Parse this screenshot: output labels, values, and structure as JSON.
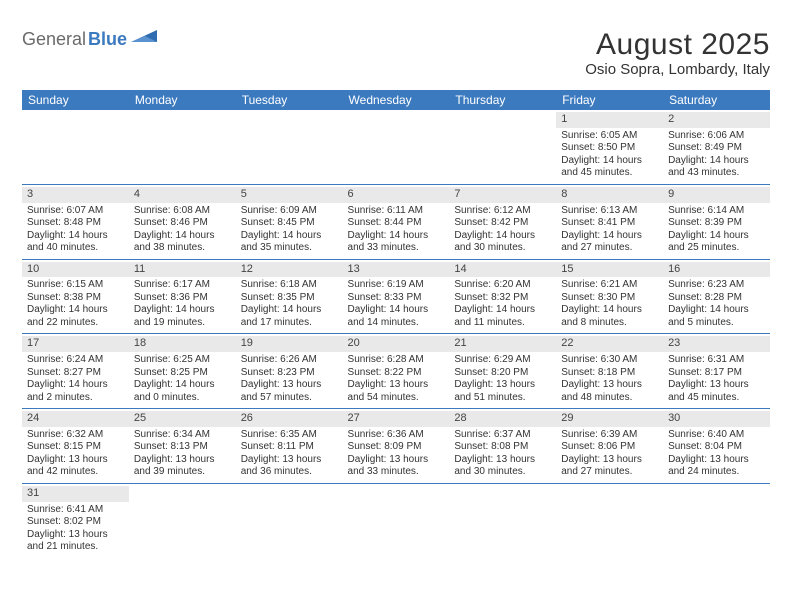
{
  "logo": {
    "part1": "General",
    "part2": "Blue"
  },
  "title": "August 2025",
  "location": "Osio Sopra, Lombardy, Italy",
  "colors": {
    "header_bg": "#3c7abf",
    "header_text": "#ffffff",
    "daynum_bg": "#e9e9e9",
    "border": "#3c7abf",
    "text": "#333333",
    "logo_gray": "#6a6a6a",
    "logo_blue": "#3c7abf"
  },
  "weekdays": [
    "Sunday",
    "Monday",
    "Tuesday",
    "Wednesday",
    "Thursday",
    "Friday",
    "Saturday"
  ],
  "weeks": [
    [
      null,
      null,
      null,
      null,
      null,
      {
        "n": "1",
        "sr": "Sunrise: 6:05 AM",
        "ss": "Sunset: 8:50 PM",
        "d1": "Daylight: 14 hours",
        "d2": "and 45 minutes."
      },
      {
        "n": "2",
        "sr": "Sunrise: 6:06 AM",
        "ss": "Sunset: 8:49 PM",
        "d1": "Daylight: 14 hours",
        "d2": "and 43 minutes."
      }
    ],
    [
      {
        "n": "3",
        "sr": "Sunrise: 6:07 AM",
        "ss": "Sunset: 8:48 PM",
        "d1": "Daylight: 14 hours",
        "d2": "and 40 minutes."
      },
      {
        "n": "4",
        "sr": "Sunrise: 6:08 AM",
        "ss": "Sunset: 8:46 PM",
        "d1": "Daylight: 14 hours",
        "d2": "and 38 minutes."
      },
      {
        "n": "5",
        "sr": "Sunrise: 6:09 AM",
        "ss": "Sunset: 8:45 PM",
        "d1": "Daylight: 14 hours",
        "d2": "and 35 minutes."
      },
      {
        "n": "6",
        "sr": "Sunrise: 6:11 AM",
        "ss": "Sunset: 8:44 PM",
        "d1": "Daylight: 14 hours",
        "d2": "and 33 minutes."
      },
      {
        "n": "7",
        "sr": "Sunrise: 6:12 AM",
        "ss": "Sunset: 8:42 PM",
        "d1": "Daylight: 14 hours",
        "d2": "and 30 minutes."
      },
      {
        "n": "8",
        "sr": "Sunrise: 6:13 AM",
        "ss": "Sunset: 8:41 PM",
        "d1": "Daylight: 14 hours",
        "d2": "and 27 minutes."
      },
      {
        "n": "9",
        "sr": "Sunrise: 6:14 AM",
        "ss": "Sunset: 8:39 PM",
        "d1": "Daylight: 14 hours",
        "d2": "and 25 minutes."
      }
    ],
    [
      {
        "n": "10",
        "sr": "Sunrise: 6:15 AM",
        "ss": "Sunset: 8:38 PM",
        "d1": "Daylight: 14 hours",
        "d2": "and 22 minutes."
      },
      {
        "n": "11",
        "sr": "Sunrise: 6:17 AM",
        "ss": "Sunset: 8:36 PM",
        "d1": "Daylight: 14 hours",
        "d2": "and 19 minutes."
      },
      {
        "n": "12",
        "sr": "Sunrise: 6:18 AM",
        "ss": "Sunset: 8:35 PM",
        "d1": "Daylight: 14 hours",
        "d2": "and 17 minutes."
      },
      {
        "n": "13",
        "sr": "Sunrise: 6:19 AM",
        "ss": "Sunset: 8:33 PM",
        "d1": "Daylight: 14 hours",
        "d2": "and 14 minutes."
      },
      {
        "n": "14",
        "sr": "Sunrise: 6:20 AM",
        "ss": "Sunset: 8:32 PM",
        "d1": "Daylight: 14 hours",
        "d2": "and 11 minutes."
      },
      {
        "n": "15",
        "sr": "Sunrise: 6:21 AM",
        "ss": "Sunset: 8:30 PM",
        "d1": "Daylight: 14 hours",
        "d2": "and 8 minutes."
      },
      {
        "n": "16",
        "sr": "Sunrise: 6:23 AM",
        "ss": "Sunset: 8:28 PM",
        "d1": "Daylight: 14 hours",
        "d2": "and 5 minutes."
      }
    ],
    [
      {
        "n": "17",
        "sr": "Sunrise: 6:24 AM",
        "ss": "Sunset: 8:27 PM",
        "d1": "Daylight: 14 hours",
        "d2": "and 2 minutes."
      },
      {
        "n": "18",
        "sr": "Sunrise: 6:25 AM",
        "ss": "Sunset: 8:25 PM",
        "d1": "Daylight: 14 hours",
        "d2": "and 0 minutes."
      },
      {
        "n": "19",
        "sr": "Sunrise: 6:26 AM",
        "ss": "Sunset: 8:23 PM",
        "d1": "Daylight: 13 hours",
        "d2": "and 57 minutes."
      },
      {
        "n": "20",
        "sr": "Sunrise: 6:28 AM",
        "ss": "Sunset: 8:22 PM",
        "d1": "Daylight: 13 hours",
        "d2": "and 54 minutes."
      },
      {
        "n": "21",
        "sr": "Sunrise: 6:29 AM",
        "ss": "Sunset: 8:20 PM",
        "d1": "Daylight: 13 hours",
        "d2": "and 51 minutes."
      },
      {
        "n": "22",
        "sr": "Sunrise: 6:30 AM",
        "ss": "Sunset: 8:18 PM",
        "d1": "Daylight: 13 hours",
        "d2": "and 48 minutes."
      },
      {
        "n": "23",
        "sr": "Sunrise: 6:31 AM",
        "ss": "Sunset: 8:17 PM",
        "d1": "Daylight: 13 hours",
        "d2": "and 45 minutes."
      }
    ],
    [
      {
        "n": "24",
        "sr": "Sunrise: 6:32 AM",
        "ss": "Sunset: 8:15 PM",
        "d1": "Daylight: 13 hours",
        "d2": "and 42 minutes."
      },
      {
        "n": "25",
        "sr": "Sunrise: 6:34 AM",
        "ss": "Sunset: 8:13 PM",
        "d1": "Daylight: 13 hours",
        "d2": "and 39 minutes."
      },
      {
        "n": "26",
        "sr": "Sunrise: 6:35 AM",
        "ss": "Sunset: 8:11 PM",
        "d1": "Daylight: 13 hours",
        "d2": "and 36 minutes."
      },
      {
        "n": "27",
        "sr": "Sunrise: 6:36 AM",
        "ss": "Sunset: 8:09 PM",
        "d1": "Daylight: 13 hours",
        "d2": "and 33 minutes."
      },
      {
        "n": "28",
        "sr": "Sunrise: 6:37 AM",
        "ss": "Sunset: 8:08 PM",
        "d1": "Daylight: 13 hours",
        "d2": "and 30 minutes."
      },
      {
        "n": "29",
        "sr": "Sunrise: 6:39 AM",
        "ss": "Sunset: 8:06 PM",
        "d1": "Daylight: 13 hours",
        "d2": "and 27 minutes."
      },
      {
        "n": "30",
        "sr": "Sunrise: 6:40 AM",
        "ss": "Sunset: 8:04 PM",
        "d1": "Daylight: 13 hours",
        "d2": "and 24 minutes."
      }
    ],
    [
      {
        "n": "31",
        "sr": "Sunrise: 6:41 AM",
        "ss": "Sunset: 8:02 PM",
        "d1": "Daylight: 13 hours",
        "d2": "and 21 minutes."
      },
      null,
      null,
      null,
      null,
      null,
      null
    ]
  ]
}
